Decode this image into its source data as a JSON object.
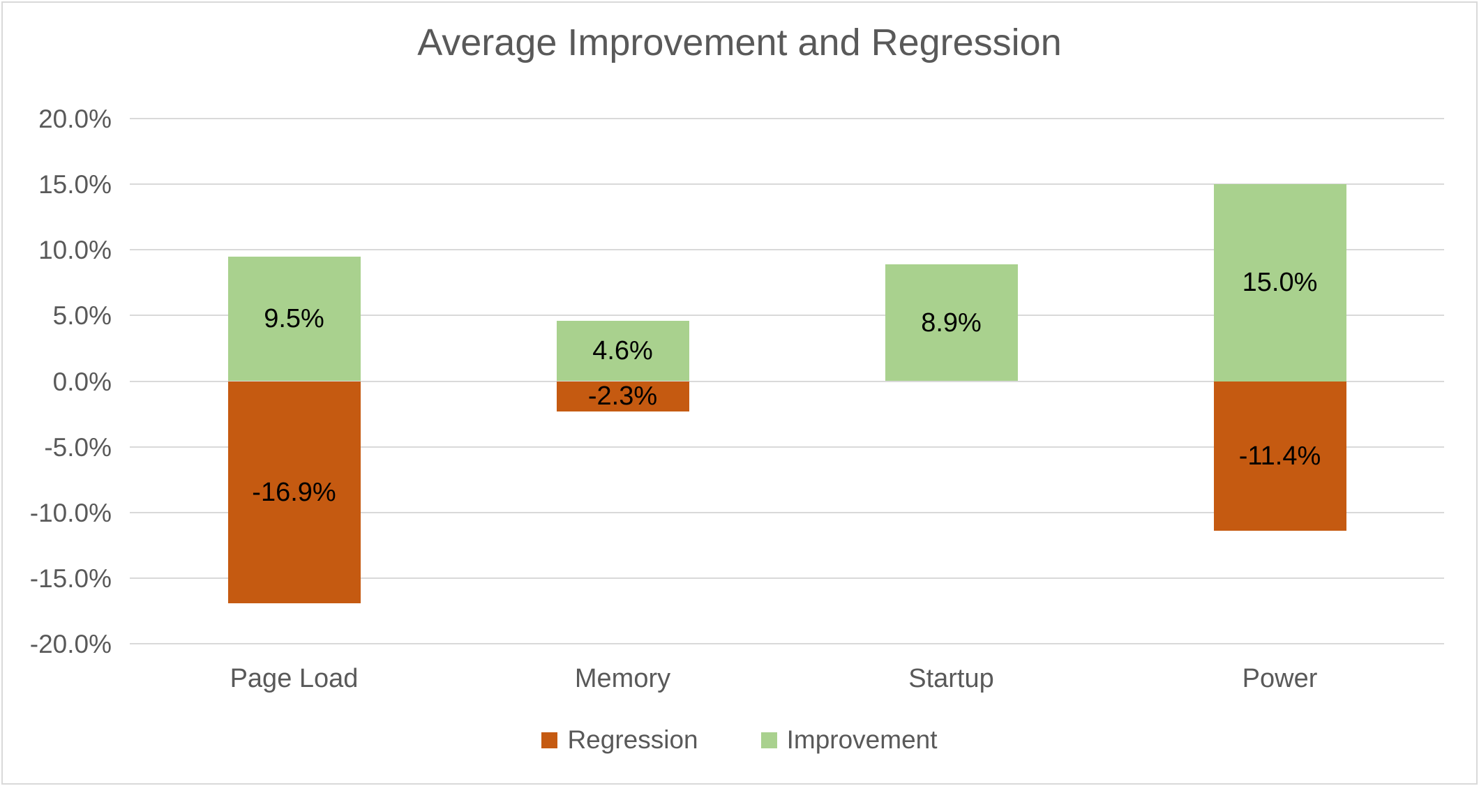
{
  "chart_data": {
    "type": "bar",
    "stacked": true,
    "title": "Average Improvement and Regression",
    "categories": [
      "Page Load",
      "Memory",
      "Startup",
      "Power"
    ],
    "series": [
      {
        "name": "Regression",
        "color": "#C55A11",
        "values": [
          -16.9,
          -2.3,
          0.0,
          -11.4
        ],
        "labels": [
          "-16.9%",
          "-2.3%",
          "",
          "-11.4%"
        ]
      },
      {
        "name": "Improvement",
        "color": "#A9D18E",
        "values": [
          9.5,
          4.6,
          8.9,
          15.0
        ],
        "labels": [
          "9.5%",
          "4.6%",
          "8.9%",
          "15.0%"
        ]
      }
    ],
    "y_axis": {
      "min": -20,
      "max": 20,
      "step": 5,
      "tick_labels": [
        "20.0%",
        "15.0%",
        "10.0%",
        "5.0%",
        "0.0%",
        "-5.0%",
        "-10.0%",
        "-15.0%",
        "-20.0%"
      ]
    },
    "legend": {
      "position": "bottom",
      "entries": [
        {
          "label": "Regression",
          "color": "#C55A11"
        },
        {
          "label": "Improvement",
          "color": "#A9D18E"
        }
      ]
    },
    "grid": true,
    "colors": {
      "text": "#595959",
      "data_label": "#000000",
      "gridline": "#D9D9D9",
      "border": "#D9D9D9",
      "background": "#FFFFFF"
    }
  }
}
